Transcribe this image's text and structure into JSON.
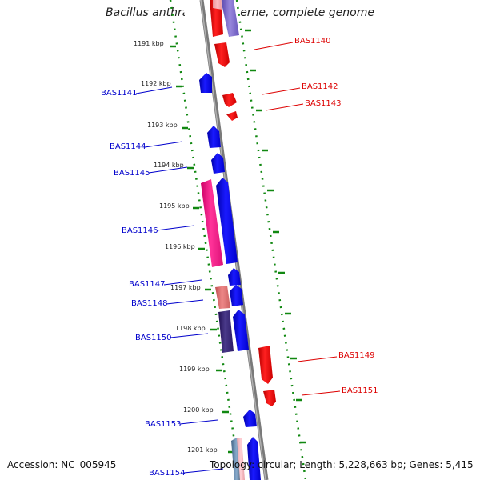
{
  "title": "Bacillus anthracis str. Sterne, complete genome",
  "footer": {
    "accession": "Accession: NC_005945",
    "summary": "Topology: circular; Length: 5,228,663 bp; Genes: 5,415"
  },
  "colors": {
    "forward": "#0000ff",
    "reverse": "#ff0000",
    "ruler": "#118811",
    "backbone": "#808080"
  },
  "ticks": [
    "1191 kbp",
    "1192 kbp",
    "1193 kbp",
    "1194 kbp",
    "1195 kbp",
    "1196 kbp",
    "1197 kbp",
    "1198 kbp",
    "1199 kbp",
    "1200 kbp",
    "1201 kbp"
  ],
  "labels_left": [
    "BAS1141",
    "BAS1144",
    "BAS1145",
    "BAS1146",
    "BAS1147",
    "BAS1148",
    "BAS1150",
    "BAS1153",
    "BAS1154"
  ],
  "labels_right": [
    "BAS1140",
    "BAS1142",
    "BAS1143",
    "BAS1149",
    "BAS1151"
  ]
}
